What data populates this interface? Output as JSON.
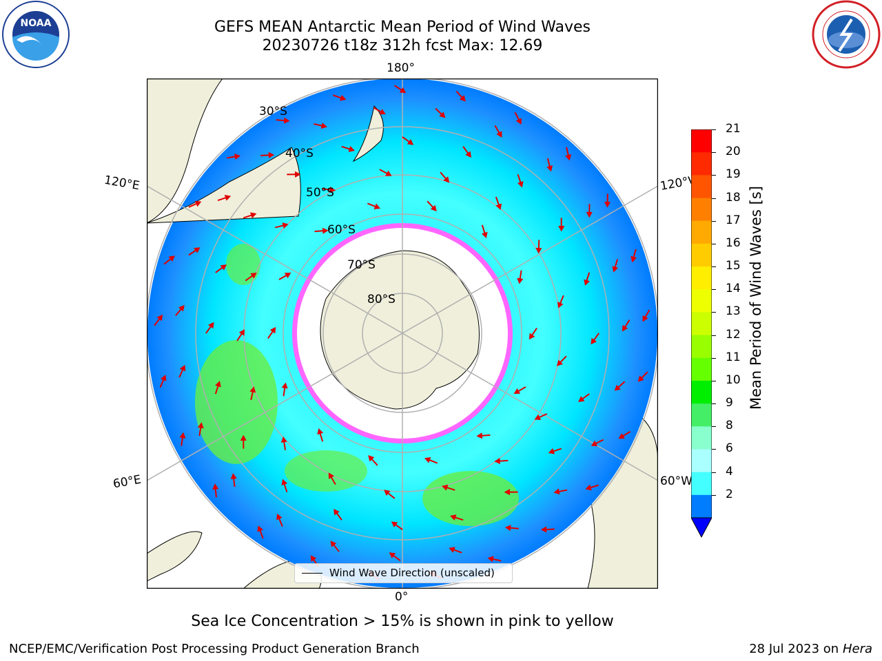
{
  "header": {
    "title_line1": "GEFS MEAN Antarctic Mean Period of Wind Waves",
    "title_line2": "20230726 t18z 312h fcst   Max: 12.69",
    "left_logo": "noara-logo",
    "left_logo_text": "NOAA",
    "right_logo": "national-weather-service-logo"
  },
  "map": {
    "lon_labels": [
      "180°",
      "120°E",
      "120°W",
      "60°E",
      "60°W",
      "0°"
    ],
    "lat_labels": [
      "30°S",
      "40°S",
      "50°S",
      "60°S",
      "70°S",
      "80°S"
    ],
    "legend_label": "Wind Wave Direction (unscaled)",
    "ice_note": "Sea Ice Concentration > 15% is shown in pink to yellow"
  },
  "colorbar": {
    "label": "Mean Period of Wind Waves [s]",
    "ticks": [
      "21",
      "20",
      "19",
      "18",
      "17",
      "16",
      "15",
      "14",
      "13",
      "12",
      "11",
      "10",
      "9",
      "8",
      "6",
      "4",
      "2"
    ],
    "colors": [
      "#ff0000",
      "#ff2a00",
      "#ff5500",
      "#ff8000",
      "#ffaa00",
      "#ffcc00",
      "#ffee00",
      "#eeff00",
      "#ccff00",
      "#99ff00",
      "#66ff00",
      "#00ee00",
      "#44ee66",
      "#88ffcc",
      "#aaffff",
      "#44ffff",
      "#00e5ff",
      "#007cff"
    ],
    "extend_color": "#0000ff"
  },
  "footer": {
    "left": "NCEP/EMC/Verification Post Processing Product Generation Branch",
    "right_date": "28 Jul 2023 on",
    "right_host": "Hera"
  }
}
